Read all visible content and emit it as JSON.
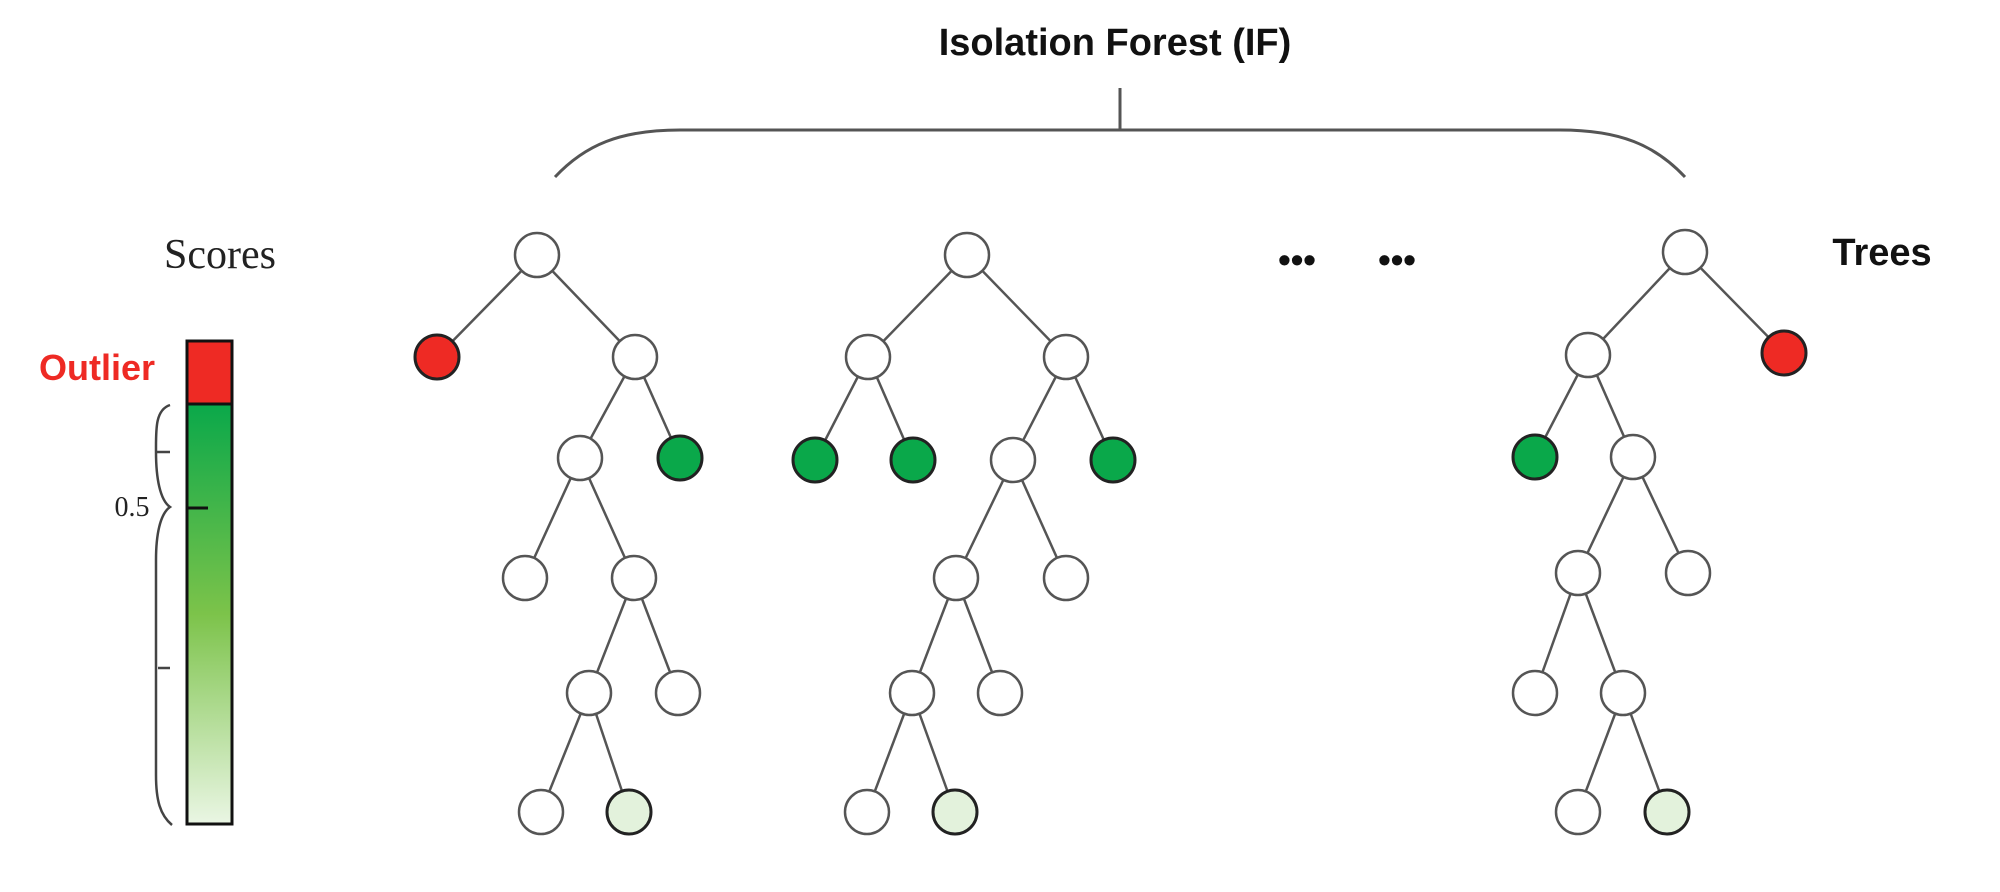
{
  "title": "Isolation Forest (IF)",
  "scores_label": "Scores",
  "trees_label": "Trees",
  "outlier_label": "Outlier",
  "threshold_label": "0.5",
  "ellipsis_left": "•••",
  "ellipsis_right": "•••",
  "colors": {
    "outlier": "#ee2a24",
    "strong_normal": "#0aa84a",
    "weak_normal": "#e3f2dc",
    "plain_node": "#ffffff",
    "edge": "#555555",
    "text": "#111111"
  }
}
